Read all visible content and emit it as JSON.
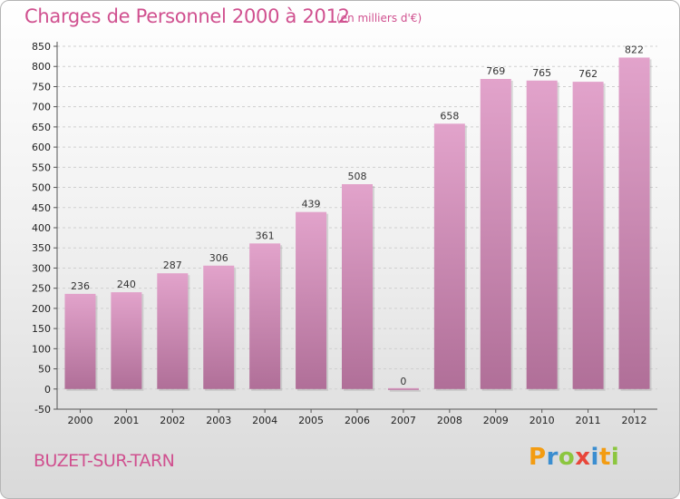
{
  "header": {
    "title": "Charges de Personnel 2000 à 2012",
    "unit": "(en milliers d'€)"
  },
  "footer": {
    "commune": "BUZET-SUR-TARN",
    "logo": "Proxiti"
  },
  "colors": {
    "bar_top": "#e2a3cb",
    "bar_bottom": "#b06f98",
    "title": "#d0508f"
  },
  "chart_data": {
    "type": "bar",
    "categories": [
      "2000",
      "2001",
      "2002",
      "2003",
      "2004",
      "2005",
      "2006",
      "2007",
      "2008",
      "2009",
      "2010",
      "2011",
      "2012"
    ],
    "values": [
      236,
      240,
      287,
      306,
      361,
      439,
      508,
      0,
      658,
      769,
      765,
      762,
      822
    ],
    "title": "Charges de Personnel 2000 à 2012",
    "xlabel": "",
    "ylabel": "",
    "ylim": [
      -50,
      850
    ],
    "ytick_step": 50,
    "grid": true,
    "legend": "none"
  }
}
